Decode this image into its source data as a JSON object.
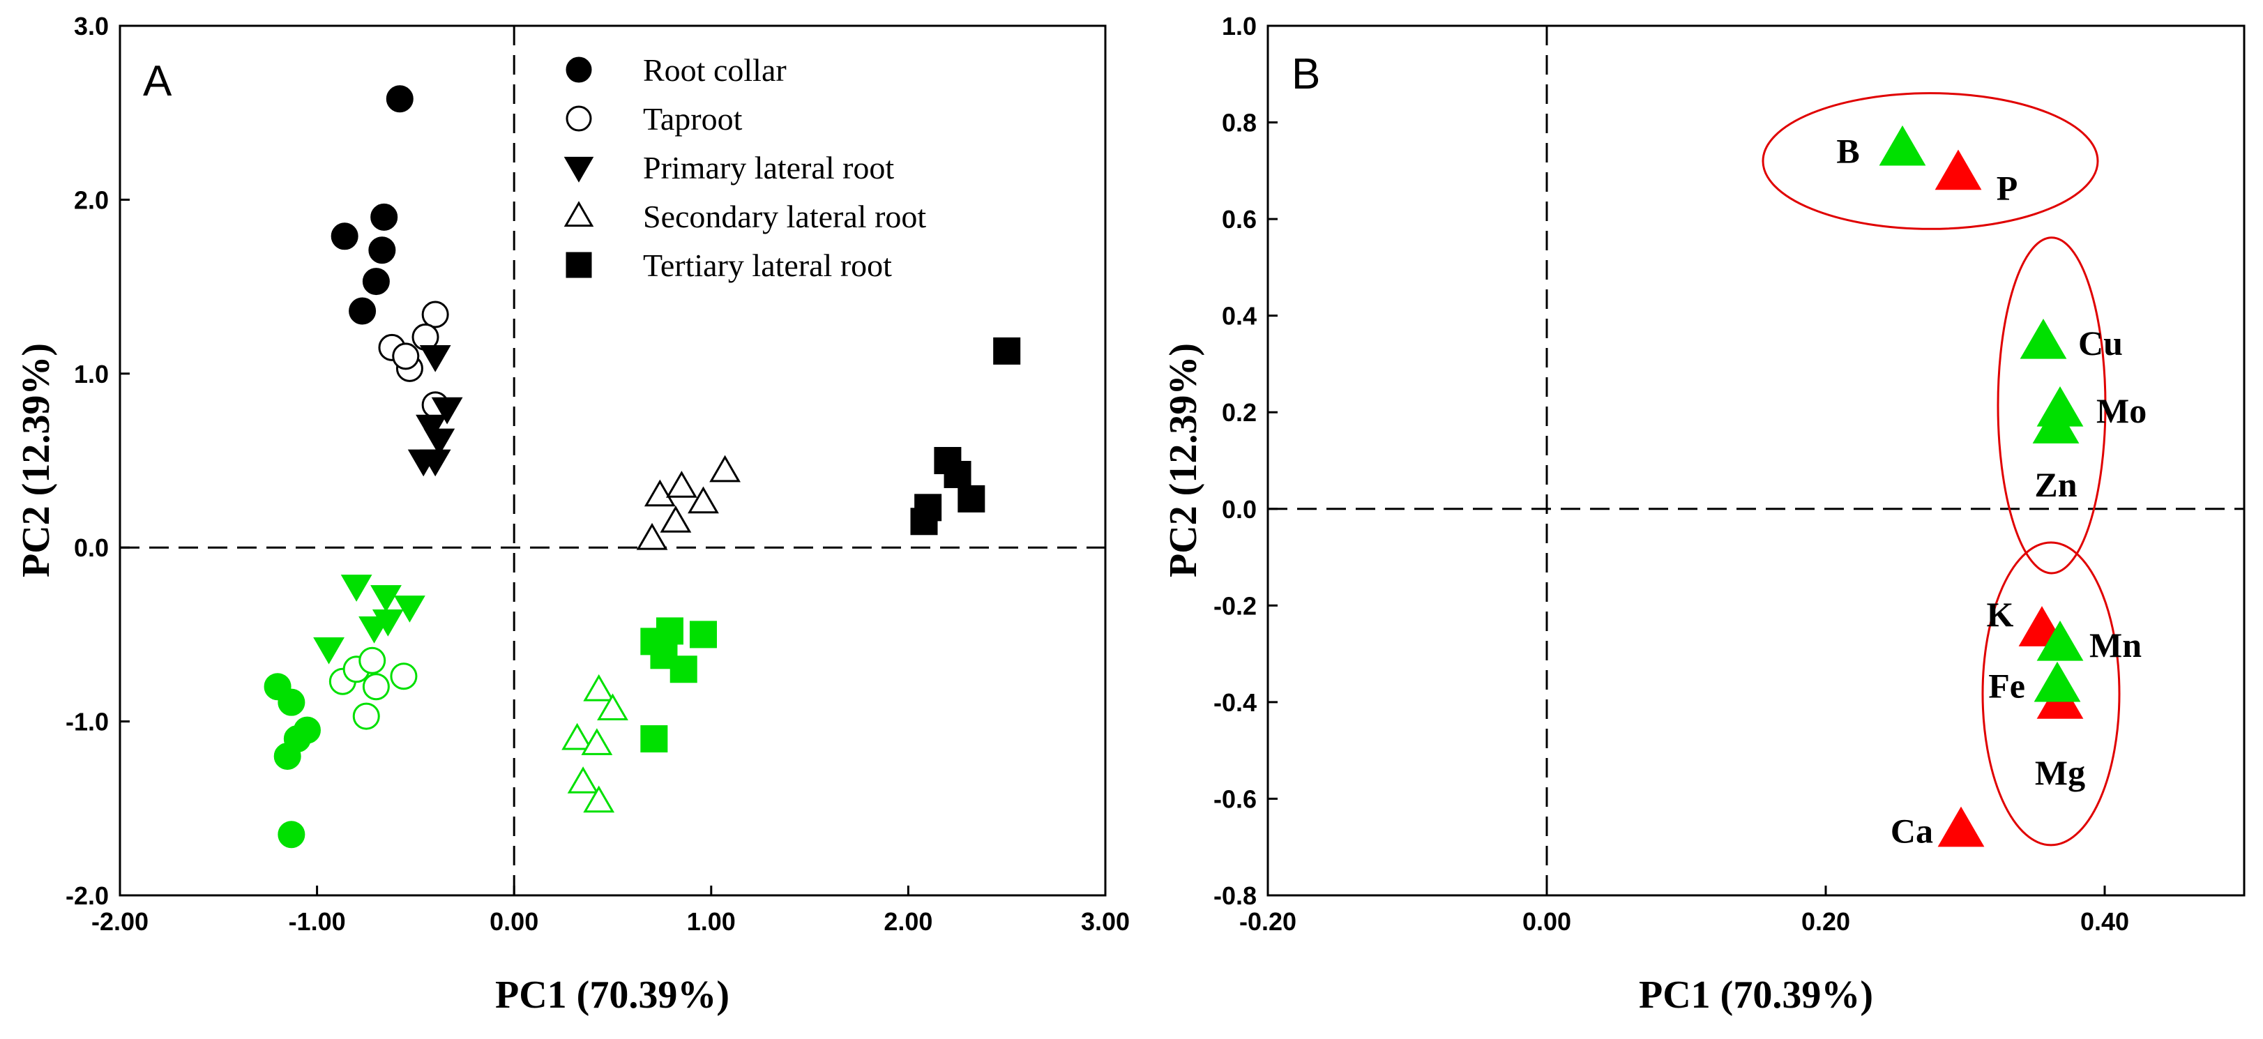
{
  "chart_data": [
    {
      "type": "scatter",
      "panel": "A",
      "xlabel": "PC1 (70.39%)",
      "ylabel": "PC2 (12.39%)",
      "xlim": [
        -2.0,
        3.0
      ],
      "ylim": [
        -2.0,
        3.0
      ],
      "xticks": [
        "-2.00",
        "-1.00",
        "0.00",
        "1.00",
        "2.00",
        "3.00"
      ],
      "yticks": [
        "-2.0",
        "-1.0",
        "0.0",
        "1.0",
        "2.0",
        "3.0"
      ],
      "reference_lines": {
        "x": 0,
        "y": 0,
        "style": "dashed"
      },
      "legend": {
        "placement": "top-center"
      },
      "series": [
        {
          "name": "Root collar",
          "marker": "circle",
          "fill": "filled",
          "color": "#000000",
          "points": [
            [
              -0.58,
              2.58
            ],
            [
              -0.86,
              1.79
            ],
            [
              -0.66,
              1.9
            ],
            [
              -0.67,
              1.71
            ],
            [
              -0.7,
              1.53
            ],
            [
              -0.77,
              1.36
            ]
          ]
        },
        {
          "name": "Root collar",
          "marker": "circle",
          "fill": "filled",
          "color": "#00e000",
          "legend": false,
          "points": [
            [
              -1.2,
              -0.8
            ],
            [
              -1.13,
              -0.89
            ],
            [
              -1.05,
              -1.05
            ],
            [
              -1.1,
              -1.1
            ],
            [
              -1.15,
              -1.2
            ],
            [
              -1.13,
              -1.65
            ]
          ]
        },
        {
          "name": "Taproot",
          "marker": "circle",
          "fill": "open",
          "color": "#000000",
          "points": [
            [
              -0.4,
              1.34
            ],
            [
              -0.62,
              1.15
            ],
            [
              -0.45,
              1.21
            ],
            [
              -0.53,
              1.03
            ],
            [
              -0.4,
              0.82
            ],
            [
              -0.55,
              1.1
            ]
          ]
        },
        {
          "name": "Taproot",
          "marker": "circle",
          "fill": "open",
          "color": "#00e000",
          "legend": false,
          "points": [
            [
              -0.87,
              -0.77
            ],
            [
              -0.8,
              -0.7
            ],
            [
              -0.72,
              -0.65
            ],
            [
              -0.56,
              -0.74
            ],
            [
              -0.7,
              -0.8
            ],
            [
              -0.75,
              -0.97
            ]
          ]
        },
        {
          "name": "Primary lateral root",
          "marker": "triangle-down",
          "fill": "filled",
          "color": "#000000",
          "points": [
            [
              -0.4,
              1.1
            ],
            [
              -0.34,
              0.8
            ],
            [
              -0.42,
              0.7
            ],
            [
              -0.38,
              0.62
            ],
            [
              -0.46,
              0.5
            ],
            [
              -0.4,
              0.5
            ]
          ]
        },
        {
          "name": "Primary lateral root",
          "marker": "triangle-down",
          "fill": "filled",
          "color": "#00e000",
          "legend": false,
          "points": [
            [
              -0.8,
              -0.22
            ],
            [
              -0.65,
              -0.28
            ],
            [
              -0.53,
              -0.34
            ],
            [
              -0.64,
              -0.42
            ],
            [
              -0.71,
              -0.46
            ],
            [
              -0.94,
              -0.58
            ]
          ]
        },
        {
          "name": "Secondary lateral root",
          "marker": "triangle-up",
          "fill": "open",
          "color": "#000000",
          "points": [
            [
              0.74,
              0.3
            ],
            [
              0.85,
              0.35
            ],
            [
              1.07,
              0.44
            ],
            [
              0.96,
              0.26
            ],
            [
              0.82,
              0.15
            ],
            [
              0.7,
              0.05
            ]
          ]
        },
        {
          "name": "Secondary lateral root",
          "marker": "triangle-up",
          "fill": "open",
          "color": "#00e000",
          "legend": false,
          "points": [
            [
              0.43,
              -0.82
            ],
            [
              0.5,
              -0.93
            ],
            [
              0.32,
              -1.1
            ],
            [
              0.42,
              -1.13
            ],
            [
              0.35,
              -1.35
            ],
            [
              0.43,
              -1.46
            ]
          ]
        },
        {
          "name": "Tertiary lateral root",
          "marker": "square",
          "fill": "filled",
          "color": "#000000",
          "points": [
            [
              2.5,
              1.13
            ],
            [
              2.2,
              0.5
            ],
            [
              2.25,
              0.42
            ],
            [
              2.32,
              0.28
            ],
            [
              2.1,
              0.23
            ],
            [
              2.08,
              0.15
            ]
          ]
        },
        {
          "name": "Tertiary lateral root",
          "marker": "square",
          "fill": "filled",
          "color": "#00e000",
          "legend": false,
          "points": [
            [
              0.79,
              -0.48
            ],
            [
              0.96,
              -0.5
            ],
            [
              0.71,
              -0.54
            ],
            [
              0.76,
              -0.62
            ],
            [
              0.86,
              -0.7
            ],
            [
              0.71,
              -1.1
            ]
          ]
        }
      ]
    },
    {
      "type": "scatter",
      "panel": "B",
      "xlabel": "PC1 (70.39%)",
      "ylabel": "PC2 (12.39%)",
      "xlim": [
        -0.2,
        0.5
      ],
      "ylim": [
        -0.8,
        1.0
      ],
      "xticks": [
        "-0.20",
        "0.00",
        "0.20",
        "0.40"
      ],
      "yticks": [
        "-0.8",
        "-0.6",
        "-0.4",
        "-0.2",
        "0.0",
        "0.2",
        "0.4",
        "0.6",
        "0.8",
        "1.0"
      ],
      "reference_lines": {
        "x": 0,
        "y": 0,
        "style": "dashed"
      },
      "points": [
        {
          "label": "B",
          "x": 0.255,
          "y": 0.745,
          "color": "#00e000"
        },
        {
          "label": "P",
          "x": 0.295,
          "y": 0.695,
          "color": "#ff0000"
        },
        {
          "label": "Cu",
          "x": 0.356,
          "y": 0.345,
          "color": "#00e000"
        },
        {
          "label": "Mo",
          "x": 0.368,
          "y": 0.205,
          "color": "#00e000"
        },
        {
          "label": "Zn",
          "x": 0.365,
          "y": 0.17,
          "color": "#00e000"
        },
        {
          "label": "K",
          "x": 0.355,
          "y": -0.25,
          "color": "#ff0000"
        },
        {
          "label": "Mn",
          "x": 0.368,
          "y": -0.28,
          "color": "#00e000"
        },
        {
          "label": "Mg",
          "x": 0.368,
          "y": -0.4,
          "color": "#ff0000"
        },
        {
          "label": "Fe",
          "x": 0.366,
          "y": -0.365,
          "color": "#00e000"
        },
        {
          "label": "Ca",
          "x": 0.297,
          "y": -0.665,
          "color": "#ff0000"
        }
      ],
      "groups": [
        [
          "B",
          "P"
        ],
        [
          "Cu",
          "Mo",
          "Zn"
        ],
        [
          "K",
          "Mn",
          "Fe",
          "Mg"
        ]
      ]
    }
  ],
  "colors": {
    "green": "#00e000",
    "red": "#ff0000",
    "black": "#000000",
    "ellipse": "#e00000"
  }
}
